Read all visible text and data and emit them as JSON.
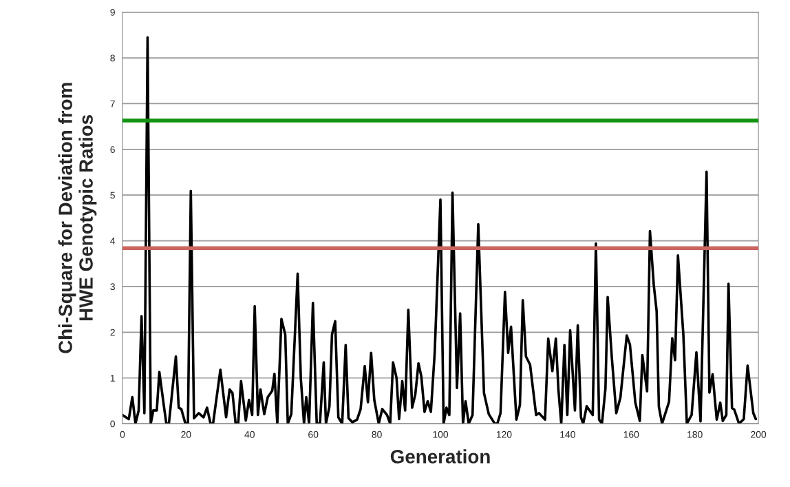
{
  "chart_data": {
    "type": "line",
    "xlabel": "Generation",
    "ylabel": "Chi-Square for Deviation from\nHWE Genotypic Ratios",
    "x": [
      0,
      2,
      3.1,
      4.1,
      5.1,
      6,
      6.9,
      7.9,
      8.9,
      9.7,
      10.8,
      11.6,
      13.1,
      13.8,
      14.6,
      16.8,
      17.7,
      18.5,
      19.8,
      20.6,
      21.5,
      22.5,
      24,
      25.5,
      26.6,
      27.7,
      28.5,
      30.8,
      32.6,
      33.7,
      34.6,
      35.6,
      36.4,
      37.3,
      38.8,
      39.8,
      40.8,
      41.6,
      42.6,
      43.4,
      44.6,
      45.7,
      47.1,
      47.8,
      48.7,
      50,
      51.2,
      52,
      53.1,
      55.1,
      56.1,
      57.1,
      57.8,
      58.7,
      59.9,
      61.1,
      62.1,
      63.3,
      64,
      65.1,
      65.9,
      66.9,
      67.9,
      69.1,
      70.2,
      71.1,
      72.3,
      73.8,
      74.9,
      76.2,
      77.2,
      78.2,
      79.2,
      80.6,
      81.7,
      83.2,
      84.2,
      85.1,
      86.2,
      87,
      88,
      88.9,
      89.9,
      91.1,
      92.1,
      93.1,
      94,
      95,
      96,
      97,
      98.2,
      100,
      101,
      101.9,
      102.8,
      103.8,
      105.2,
      106.2,
      107.1,
      107.9,
      108.9,
      110.1,
      111.9,
      113.7,
      115.2,
      117.1,
      117.9,
      118.9,
      120.3,
      121.3,
      122.2,
      123.9,
      125,
      125.9,
      126.9,
      128.2,
      130.1,
      131,
      132.9,
      133.9,
      135.2,
      136.3,
      137.1,
      138,
      139,
      139.9,
      140.8,
      142.3,
      143.2,
      144.2,
      144.9,
      146,
      147.9,
      148.9,
      149.9,
      150.8,
      151.9,
      152.6,
      153.9,
      155.3,
      156.6,
      158.6,
      159.6,
      161.3,
      162.7,
      163.5,
      165,
      165.9,
      167.1,
      168,
      168.7,
      169.7,
      171.9,
      172.9,
      173.8,
      174.7,
      176.4,
      177.5,
      179,
      180.5,
      181.8,
      183.7,
      184.6,
      185.6,
      186.9,
      188,
      188.8,
      189.9,
      190.6,
      191.7,
      192.4,
      193.9,
      195.4,
      196.6,
      198.4,
      199.2
    ],
    "series": [
      {
        "color": "#000000",
        "values": [
          0.19,
          0.1,
          0.58,
          0,
          0.29,
          2.35,
          0.23,
          8.45,
          0,
          0.29,
          0.29,
          1.13,
          0.35,
          0,
          0,
          1.47,
          0.35,
          0.32,
          0,
          0,
          5.09,
          0.12,
          0.23,
          0.14,
          0.35,
          0,
          0,
          1.18,
          0.14,
          0.75,
          0.67,
          0,
          0,
          0.93,
          0.07,
          0.52,
          0.19,
          2.57,
          0.19,
          0.75,
          0.21,
          0.58,
          0.72,
          1.09,
          0,
          2.29,
          1.95,
          0,
          0.21,
          3.28,
          0.99,
          0,
          0.58,
          0,
          2.64,
          0,
          0,
          1.34,
          0,
          0.38,
          1.95,
          2.24,
          0.14,
          0,
          1.72,
          0.12,
          0.03,
          0.09,
          0.32,
          1.26,
          0.47,
          1.55,
          0.52,
          0,
          0.32,
          0.19,
          0,
          1.34,
          1.0,
          0.1,
          0.93,
          0.29,
          2.49,
          0.35,
          0.64,
          1.32,
          1.03,
          0.26,
          0.49,
          0.26,
          1.55,
          4.9,
          0,
          0.35,
          0.19,
          5.05,
          0.78,
          2.41,
          0,
          0.49,
          0,
          0.19,
          4.36,
          0.67,
          0.21,
          0,
          0,
          0.23,
          2.88,
          1.55,
          2.12,
          0.09,
          0.41,
          2.7,
          1.47,
          1.29,
          0.19,
          0.23,
          0.09,
          1.86,
          1.15,
          1.86,
          0.75,
          0,
          1.72,
          0.19,
          2.04,
          0.29,
          2.15,
          0.14,
          0,
          0.38,
          0.19,
          3.94,
          0.09,
          0,
          0.77,
          2.77,
          1.45,
          0.23,
          0.57,
          1.93,
          1.73,
          0.46,
          0.06,
          1.5,
          0.71,
          4.21,
          3.03,
          2.46,
          0.37,
          0,
          0.48,
          1.87,
          1.39,
          3.68,
          1.95,
          0,
          0.19,
          1.56,
          0.05,
          5.51,
          0.68,
          1.08,
          0.09,
          0.46,
          0.06,
          0.19,
          3.06,
          0.34,
          0.31,
          0,
          0.1,
          1.27,
          0.23,
          0.1
        ]
      }
    ],
    "xlim": [
      0,
      200
    ],
    "xticks": [
      0,
      20,
      40,
      60,
      80,
      100,
      120,
      140,
      160,
      180,
      200
    ],
    "ylim": [
      0,
      9
    ],
    "yticks": [
      0,
      1,
      2,
      3,
      4,
      5,
      6,
      7,
      8,
      9
    ],
    "ref_lines": [
      {
        "axis": "y",
        "value": 6.63,
        "color": "#129412",
        "line_style": "solid"
      },
      {
        "axis": "y",
        "value": 3.84,
        "color": "#cc6560",
        "line_style": "solid"
      }
    ],
    "grid": "y",
    "legend": false,
    "marker": "none",
    "line_style": "solid"
  }
}
